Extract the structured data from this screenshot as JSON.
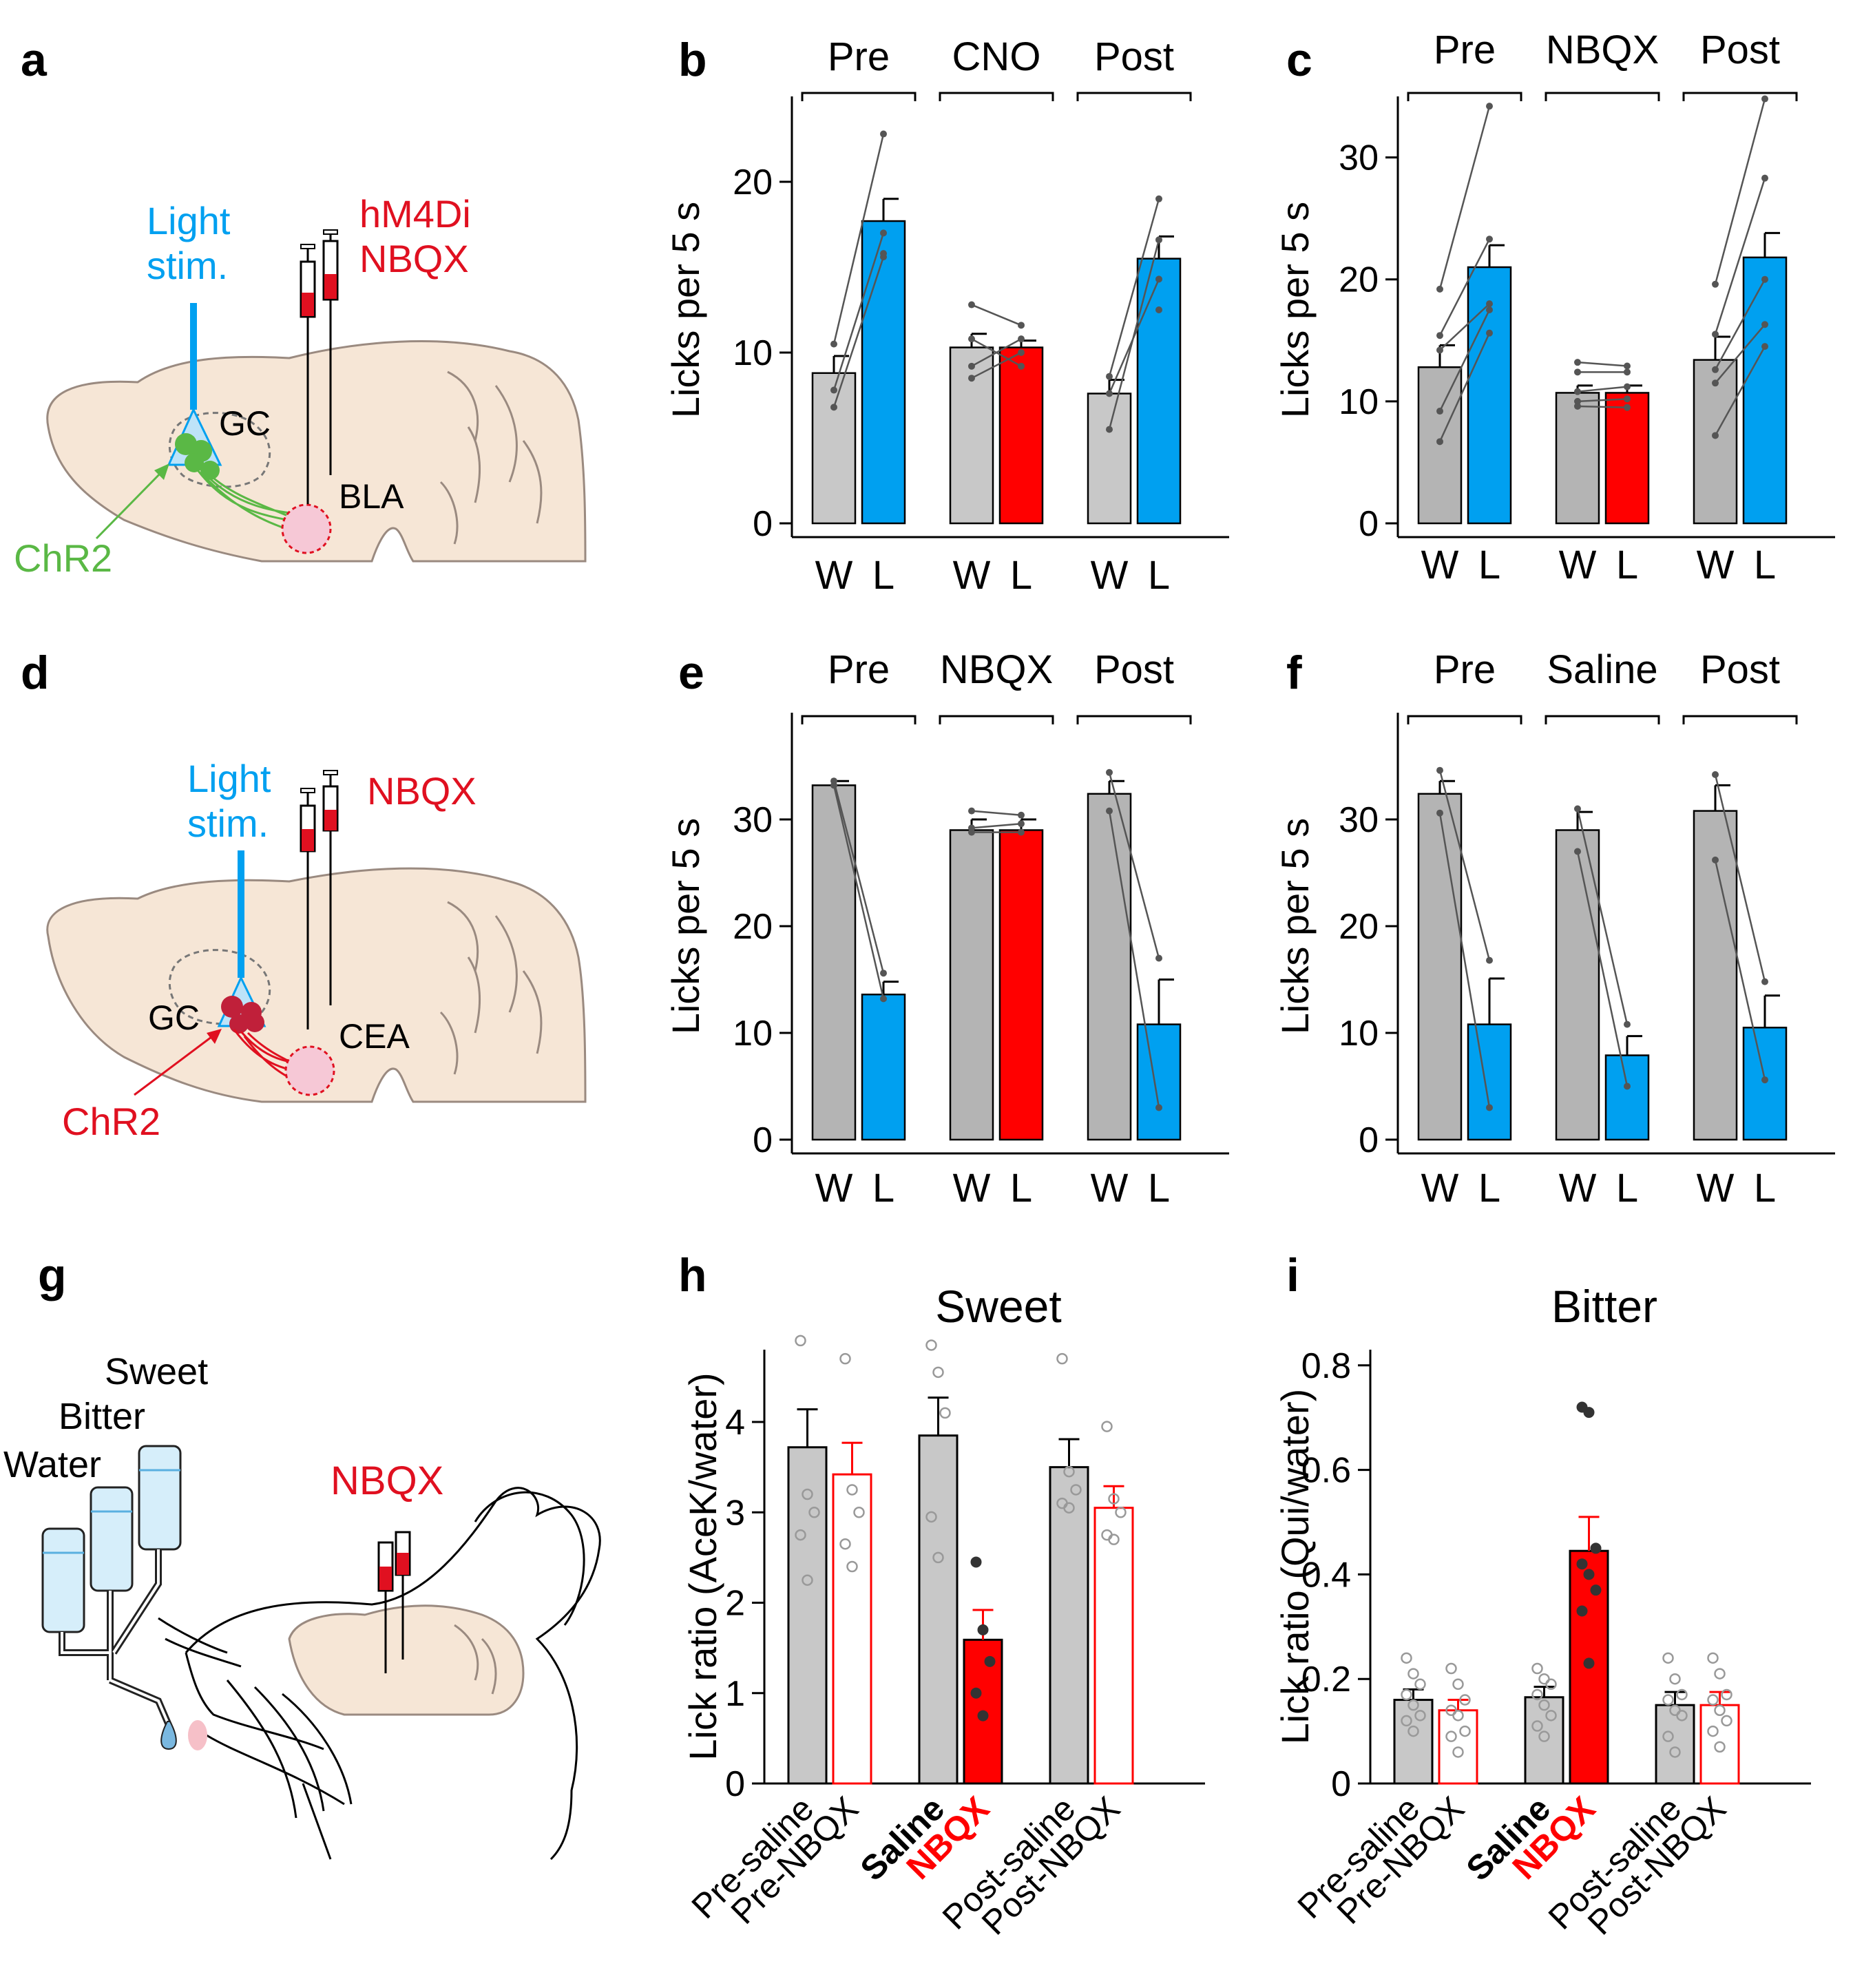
{
  "panels": {
    "a": {
      "label": "a",
      "light": "Light",
      "stim": "stim.",
      "drug1": "hM4Di",
      "drug2": "NBQX",
      "gc": "GC",
      "bla": "BLA",
      "chr2": "ChR2"
    },
    "d": {
      "label": "d",
      "light": "Light",
      "stim": "stim.",
      "drug": "NBQX",
      "gc": "GC",
      "cea": "CEA",
      "chr2": "ChR2"
    },
    "g": {
      "label": "g",
      "sweet": "Sweet",
      "bitter": "Bitter",
      "water": "Water",
      "drug": "NBQX"
    }
  },
  "colors": {
    "water_bar": "#c8c8c8",
    "water_bar_dark": "#b4b4b4",
    "light_bar": "#00a0f0",
    "drug_bar": "#ff0000",
    "chr2_green": "#5ab845",
    "chr2_red": "#e01020",
    "brain": "#f6e6d6"
  },
  "chart_data": [
    {
      "panel": "b",
      "type": "bar",
      "ylabel": "Licks per 5 s",
      "ylim": [
        0,
        25
      ],
      "yticks": [
        0,
        10,
        20
      ],
      "groups": [
        "Pre",
        "CNO",
        "Post"
      ],
      "bar_labels": [
        "W",
        "L"
      ],
      "series": [
        {
          "name": "W",
          "values": [
            8.8,
            10.3,
            7.6
          ],
          "errors": [
            1.0,
            0.8,
            0.8
          ]
        },
        {
          "name": "L",
          "values": [
            17.7,
            10.3,
            15.5
          ],
          "errors": [
            1.3,
            0.4,
            1.3
          ]
        }
      ],
      "points_w": [
        [
          10.5,
          7.8,
          6.8
        ],
        [
          12.8,
          9.2,
          10.8,
          8.5
        ],
        [
          8.6,
          5.5,
          7.6
        ]
      ],
      "points_l": [
        [
          22.8,
          17.0,
          15.6,
          15.8
        ],
        [
          11.6,
          10.8,
          9.2,
          10.0
        ],
        [
          19.0,
          16.6,
          14.3,
          12.5
        ]
      ]
    },
    {
      "panel": "c",
      "type": "bar",
      "ylabel": "Licks per 5 s",
      "ylim": [
        0,
        35
      ],
      "yticks": [
        0,
        10,
        20,
        30
      ],
      "groups": [
        "Pre",
        "NBQX",
        "Post"
      ],
      "bar_labels": [
        "W",
        "L"
      ],
      "series": [
        {
          "name": "W",
          "values": [
            12.8,
            10.7,
            13.4
          ],
          "errors": [
            1.8,
            0.6,
            1.9
          ]
        },
        {
          "name": "L",
          "values": [
            21.0,
            10.7,
            21.8
          ],
          "errors": [
            1.8,
            0.6,
            2.0
          ]
        }
      ],
      "points_w": [
        [
          19.2,
          15.4,
          14.2,
          9.2,
          6.7
        ],
        [
          13.2,
          12.4,
          10.8,
          10.0,
          9.6
        ],
        [
          19.6,
          15.5,
          12.6,
          11.5,
          7.2
        ]
      ],
      "points_l": [
        [
          34.2,
          23.3,
          18.0,
          17.5,
          15.6
        ],
        [
          12.9,
          12.4,
          11.2,
          10.2,
          9.5
        ],
        [
          34.8,
          28.3,
          20.0,
          16.3,
          14.5
        ]
      ]
    },
    {
      "panel": "e",
      "type": "bar",
      "ylabel": "Licks per 5 s",
      "ylim": [
        0,
        40
      ],
      "yticks": [
        0,
        10,
        20,
        30
      ],
      "groups": [
        "Pre",
        "NBQX",
        "Post"
      ],
      "bar_labels": [
        "W",
        "L"
      ],
      "series": [
        {
          "name": "W",
          "values": [
            33.2,
            29.0,
            32.4
          ],
          "errors": [
            0.4,
            1.0,
            1.2
          ]
        },
        {
          "name": "L",
          "values": [
            13.6,
            29.0,
            10.8
          ],
          "errors": [
            1.2,
            1.0,
            4.2
          ]
        }
      ],
      "points_w": [
        [
          33.6,
          33.2
        ],
        [
          30.8,
          29.2,
          28.8
        ],
        [
          34.4,
          30.8
        ]
      ],
      "points_l": [
        [
          15.6,
          13.2
        ],
        [
          30.4,
          29.6,
          28.8
        ],
        [
          17.0,
          3.0
        ]
      ]
    },
    {
      "panel": "f",
      "type": "bar",
      "ylabel": "Licks per 5 s",
      "ylim": [
        0,
        40
      ],
      "yticks": [
        0,
        10,
        20,
        30
      ],
      "groups": [
        "Pre",
        "Saline",
        "Post"
      ],
      "bar_labels": [
        "W",
        "L"
      ],
      "series": [
        {
          "name": "W",
          "values": [
            32.4,
            29.0,
            30.8
          ],
          "errors": [
            1.2,
            1.7,
            2.4
          ]
        },
        {
          "name": "L",
          "values": [
            10.8,
            7.9,
            10.5
          ],
          "errors": [
            4.3,
            1.8,
            3.0
          ]
        }
      ],
      "points_w": [
        [
          34.6,
          30.6
        ],
        [
          31.0,
          27.0
        ],
        [
          34.2,
          26.2
        ]
      ],
      "points_l": [
        [
          16.8,
          3.0
        ],
        [
          10.8,
          5.0
        ],
        [
          14.8,
          5.6
        ]
      ]
    },
    {
      "panel": "h",
      "type": "bar",
      "title": "Sweet",
      "ylabel": "Lick ratio (AceK/water)",
      "ylim": [
        0,
        4.8
      ],
      "yticks": [
        0,
        1,
        2,
        3,
        4
      ],
      "categories": [
        "Pre-saline",
        "Pre-NBQX",
        "Saline",
        "NBQX",
        "Post-saline",
        "Post-NBQX"
      ],
      "values": [
        3.72,
        3.42,
        3.85,
        1.59,
        3.5,
        3.05
      ],
      "errors": [
        0.42,
        0.35,
        0.42,
        0.33,
        0.31,
        0.24
      ],
      "points": [
        [
          4.9,
          3.2,
          3.0,
          2.75,
          2.25
        ],
        [
          4.7,
          3.25,
          3.0,
          2.65,
          2.4
        ],
        [
          4.85,
          4.55,
          4.1,
          2.95,
          2.5
        ],
        [
          2.45,
          1.7,
          1.35,
          1.0,
          0.75
        ],
        [
          4.7,
          3.45,
          3.25,
          3.1,
          3.05
        ],
        [
          3.95,
          3.15,
          3.0,
          2.75,
          2.7
        ]
      ]
    },
    {
      "panel": "i",
      "type": "bar",
      "title": "Bitter",
      "ylabel": "Lick ratio (Qui/water)",
      "ylim": [
        0,
        0.83
      ],
      "yticks": [
        0,
        0.2,
        0.4,
        0.6,
        0.8
      ],
      "categories": [
        "Pre-saline",
        "Pre-NBQX",
        "Saline",
        "NBQX",
        "Post-saline",
        "Post-NBQX"
      ],
      "values": [
        0.16,
        0.14,
        0.165,
        0.445,
        0.15,
        0.15
      ],
      "errors": [
        0.02,
        0.02,
        0.02,
        0.065,
        0.025,
        0.025
      ],
      "points": [
        [
          0.24,
          0.21,
          0.19,
          0.17,
          0.15,
          0.13,
          0.12,
          0.1
        ],
        [
          0.22,
          0.19,
          0.16,
          0.14,
          0.13,
          0.1,
          0.09,
          0.06
        ],
        [
          0.22,
          0.2,
          0.19,
          0.17,
          0.15,
          0.13,
          0.11,
          0.09
        ],
        [
          0.72,
          0.71,
          0.45,
          0.42,
          0.4,
          0.37,
          0.33,
          0.23
        ],
        [
          0.24,
          0.2,
          0.17,
          0.16,
          0.14,
          0.13,
          0.09,
          0.06
        ],
        [
          0.24,
          0.21,
          0.17,
          0.16,
          0.14,
          0.12,
          0.1,
          0.07
        ]
      ]
    }
  ]
}
